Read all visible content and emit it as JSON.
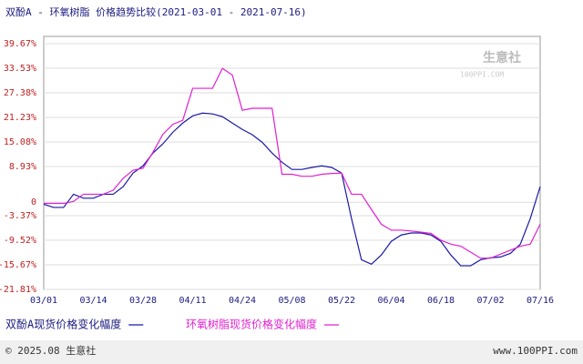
{
  "chart_data": {
    "type": "line",
    "title": "双酚A - 环氧树脂 价格趋势比较(2021-03-01 - 2021-07-16)",
    "categories": [
      "03/01",
      null,
      null,
      null,
      null,
      "03/14",
      null,
      null,
      null,
      null,
      "03/28",
      null,
      null,
      null,
      null,
      "04/11",
      null,
      null,
      null,
      null,
      "04/24",
      null,
      null,
      null,
      null,
      "05/08",
      null,
      null,
      null,
      null,
      "05/22",
      null,
      null,
      null,
      null,
      "06/04",
      null,
      null,
      null,
      null,
      "06/18",
      null,
      null,
      null,
      null,
      "07/02",
      null,
      null,
      null,
      null,
      "07/16"
    ],
    "series": [
      {
        "name": "双酚A现货价格变化幅度",
        "color": "#1a1aa6",
        "values": [
          -0.5,
          -1.3,
          -1.3,
          2,
          1,
          1,
          2,
          2,
          3.9,
          7.3,
          9.1,
          12.3,
          14.6,
          17.5,
          19.8,
          21.6,
          22.3,
          22.1,
          21.4,
          19.8,
          18.2,
          16.9,
          15,
          12.3,
          10,
          8.2,
          8.2,
          8.7,
          9.1,
          8.7,
          7.3,
          -4.1,
          -14.4,
          -15.5,
          -13.2,
          -9.8,
          -8.2,
          -7.7,
          -7.7,
          -8.2,
          -9.8,
          -13.2,
          -15.9,
          -15.9,
          -14.4,
          -13.9,
          -13.7,
          -12.8,
          -10.5,
          -4.1,
          3.9
        ]
      },
      {
        "name": "环氧树脂现货价格变化幅度",
        "color": "#e020d0",
        "values": [
          -0.3,
          -0.3,
          -0.3,
          0.2,
          2,
          2,
          2,
          3,
          6,
          8,
          8.5,
          12.5,
          17,
          19.5,
          20.5,
          28.5,
          28.5,
          28.5,
          33.5,
          31.8,
          23,
          23.5,
          23.5,
          23.5,
          7,
          7,
          6.5,
          6.5,
          7,
          7.2,
          7.3,
          2,
          2,
          -1.8,
          -5.5,
          -7,
          -7,
          -7.2,
          -7.5,
          -7.8,
          -9.5,
          -10.5,
          -11,
          -12.5,
          -14,
          -14,
          -13,
          -12,
          -11,
          -10.5,
          -5.5
        ]
      }
    ],
    "ylim": [
      -21.81,
      39.67
    ],
    "yticks": [
      {
        "value": 39.67,
        "label": "39.67%"
      },
      {
        "value": 33.53,
        "label": "33.53%"
      },
      {
        "value": 27.38,
        "label": "27.38%"
      },
      {
        "value": 21.23,
        "label": "21.23%"
      },
      {
        "value": 15.08,
        "label": "15.08%"
      },
      {
        "value": 8.93,
        "label": "8.93%"
      },
      0,
      {
        "value": -3.37,
        "label": "-3.37%"
      },
      {
        "value": -9.52,
        "label": "-9.52%"
      },
      {
        "value": -15.67,
        "label": "-15.67%"
      },
      {
        "value": -21.81,
        "label": "-21.81%"
      }
    ],
    "grid": true
  },
  "watermark": {
    "name": "生意社",
    "site": "100PPI.COM"
  },
  "footer": {
    "copyright": "© 2025.08 生意社",
    "website": "www.100PPI.com"
  }
}
